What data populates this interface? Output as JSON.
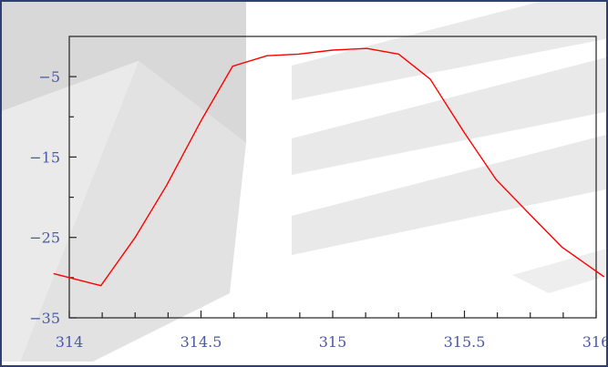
{
  "chart_data": {
    "type": "line",
    "title": "",
    "xlabel": "",
    "ylabel": "",
    "xlim": [
      314,
      316
    ],
    "ylim": [
      -35,
      0
    ],
    "x_ticks": [
      314,
      314.5,
      315,
      315.5,
      316
    ],
    "x_tick_labels": [
      "314",
      "314.5",
      "315",
      "315.5",
      "316"
    ],
    "y_ticks": [
      -5,
      -15,
      -25,
      -35
    ],
    "y_tick_labels": [
      "−5",
      "−15",
      "−25",
      "−35"
    ],
    "grid": false,
    "line_color": "#ff0000",
    "series": [
      {
        "x": [
          313.94,
          314.12,
          314.25,
          314.37,
          314.5,
          314.62,
          314.75,
          314.87,
          315.0,
          315.13,
          315.25,
          315.37,
          315.5,
          315.62,
          315.75,
          315.87,
          316.03
        ],
        "y": [
          -29.5,
          -31,
          -25,
          -18.5,
          -10.5,
          -3.7,
          -2.4,
          -2.2,
          -1.7,
          -1.5,
          -2.2,
          -5.3,
          -12,
          -17.8,
          -22.2,
          -26.2,
          -29.9
        ]
      }
    ]
  }
}
